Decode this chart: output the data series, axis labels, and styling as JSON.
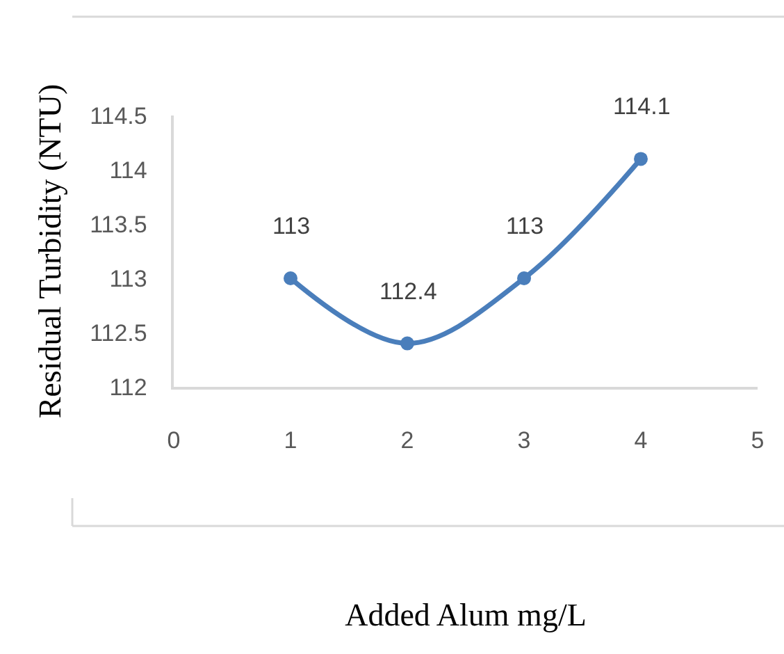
{
  "chart_data": {
    "type": "line",
    "xlabel": "Added Alum mg/L",
    "ylabel": "Residual Turbidity (NTU)",
    "x": [
      1,
      2,
      3,
      4
    ],
    "series": [
      {
        "values": [
          113,
          112.4,
          113,
          114.1
        ],
        "color": "#4a7ebb"
      }
    ],
    "xlim": [
      0,
      5
    ],
    "xticks": [
      0,
      1,
      2,
      3,
      4,
      5
    ],
    "ylim": [
      112,
      114.5
    ],
    "yticks": [
      112,
      112.5,
      113,
      113.5,
      114,
      114.5
    ],
    "grid": false,
    "marker": "circle",
    "line_style": "solid",
    "data_labels": true
  }
}
